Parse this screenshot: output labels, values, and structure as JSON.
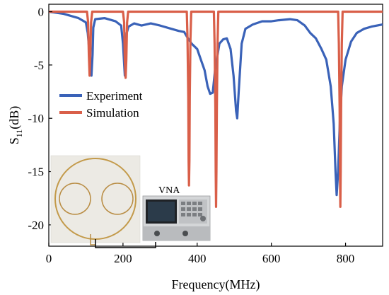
{
  "chart_data": {
    "type": "line",
    "xlabel": "Frequency(MHz)",
    "ylabel_main": "S",
    "ylabel_sub": "11",
    "ylabel_unit": "(dB)",
    "xlim": [
      0,
      900
    ],
    "ylim": [
      -22,
      0.7
    ],
    "xticks": [
      0,
      200,
      400,
      600,
      800
    ],
    "yticks": [
      0,
      -5,
      -10,
      -15,
      -20
    ],
    "legend_position": "center-left",
    "inset_label": "VNA",
    "series": [
      {
        "name": "Experiment",
        "color": "#3a62b8",
        "points": [
          [
            0,
            0
          ],
          [
            40,
            -0.2
          ],
          [
            80,
            -0.6
          ],
          [
            100,
            -1.0
          ],
          [
            105,
            -2.0
          ],
          [
            110,
            -4.0
          ],
          [
            115,
            -6.0
          ],
          [
            118,
            -4.0
          ],
          [
            120,
            -1.5
          ],
          [
            125,
            -0.7
          ],
          [
            150,
            -0.6
          ],
          [
            180,
            -0.9
          ],
          [
            195,
            -1.3
          ],
          [
            200,
            -3.0
          ],
          [
            205,
            -6.0
          ],
          [
            210,
            -2.0
          ],
          [
            215,
            -1.4
          ],
          [
            230,
            -1.1
          ],
          [
            250,
            -1.3
          ],
          [
            275,
            -1.1
          ],
          [
            300,
            -1.3
          ],
          [
            330,
            -1.6
          ],
          [
            350,
            -1.8
          ],
          [
            365,
            -1.9
          ],
          [
            375,
            -2.5
          ],
          [
            385,
            -3.0
          ],
          [
            400,
            -3.5
          ],
          [
            410,
            -4.5
          ],
          [
            420,
            -5.5
          ],
          [
            428,
            -7.0
          ],
          [
            435,
            -7.7
          ],
          [
            442,
            -7.6
          ],
          [
            448,
            -5.5
          ],
          [
            460,
            -3.0
          ],
          [
            470,
            -2.6
          ],
          [
            480,
            -2.5
          ],
          [
            490,
            -3.5
          ],
          [
            498,
            -6.0
          ],
          [
            505,
            -9.3
          ],
          [
            508,
            -10.0
          ],
          [
            512,
            -7.5
          ],
          [
            520,
            -3.0
          ],
          [
            530,
            -1.6
          ],
          [
            550,
            -1.2
          ],
          [
            575,
            -0.9
          ],
          [
            600,
            -0.9
          ],
          [
            620,
            -0.8
          ],
          [
            650,
            -0.7
          ],
          [
            670,
            -0.8
          ],
          [
            690,
            -1.3
          ],
          [
            705,
            -2.0
          ],
          [
            720,
            -2.5
          ],
          [
            735,
            -3.5
          ],
          [
            748,
            -4.5
          ],
          [
            760,
            -7.0
          ],
          [
            768,
            -10.5
          ],
          [
            773,
            -15.0
          ],
          [
            776,
            -17.2
          ],
          [
            780,
            -15.0
          ],
          [
            785,
            -10.0
          ],
          [
            790,
            -7.0
          ],
          [
            800,
            -4.5
          ],
          [
            815,
            -2.8
          ],
          [
            830,
            -2.0
          ],
          [
            850,
            -1.6
          ],
          [
            870,
            -1.4
          ],
          [
            900,
            -1.2
          ]
        ]
      },
      {
        "name": "Simulation",
        "color": "#d95f49",
        "points": [
          [
            0,
            0
          ],
          [
            103,
            0
          ],
          [
            106,
            -1.0
          ],
          [
            108,
            -4.0
          ],
          [
            110,
            -6.0
          ],
          [
            112,
            -4.0
          ],
          [
            114,
            -1.0
          ],
          [
            117,
            0
          ],
          [
            200,
            0
          ],
          [
            203,
            -1.0
          ],
          [
            205,
            -4.5
          ],
          [
            207,
            -6.2
          ],
          [
            209,
            -4.5
          ],
          [
            211,
            -1.0
          ],
          [
            214,
            0
          ],
          [
            372,
            0
          ],
          [
            374,
            -2.5
          ],
          [
            376,
            -8.0
          ],
          [
            377,
            -14.0
          ],
          [
            378,
            -16.3
          ],
          [
            379,
            -14.0
          ],
          [
            380,
            -8.0
          ],
          [
            382,
            -2.5
          ],
          [
            384,
            0
          ],
          [
            445,
            0
          ],
          [
            447,
            -3.0
          ],
          [
            449,
            -9.0
          ],
          [
            450,
            -15.0
          ],
          [
            451,
            -18.3
          ],
          [
            452,
            -15.0
          ],
          [
            453,
            -9.0
          ],
          [
            455,
            -3.0
          ],
          [
            457,
            0
          ],
          [
            780,
            0
          ],
          [
            782,
            -3.0
          ],
          [
            784,
            -9.0
          ],
          [
            785,
            -15.0
          ],
          [
            786,
            -18.3
          ],
          [
            787,
            -15.0
          ],
          [
            788,
            -9.0
          ],
          [
            790,
            -3.0
          ],
          [
            792,
            0
          ],
          [
            900,
            0
          ]
        ]
      }
    ]
  }
}
